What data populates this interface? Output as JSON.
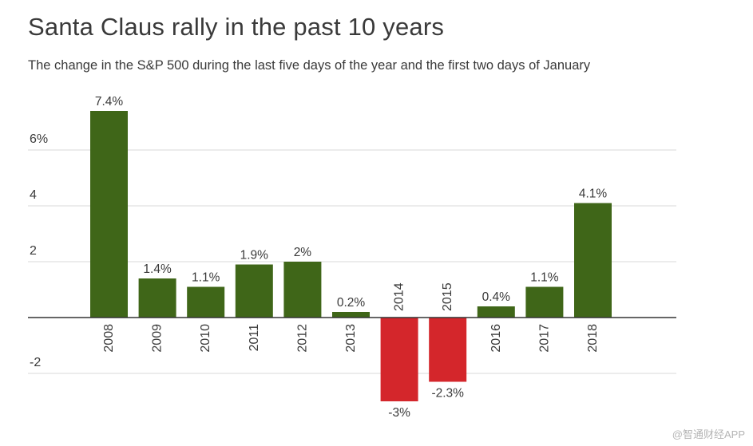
{
  "chart_data": {
    "type": "bar",
    "title": "Santa Claus rally in the past 10 years",
    "subtitle": "The change in the S&P 500 during the last five days of the year and the first two days of January",
    "categories": [
      "2008",
      "2009",
      "2010",
      "2011",
      "2012",
      "2013",
      "2014",
      "2015",
      "2016",
      "2017",
      "2018"
    ],
    "values": [
      7.4,
      1.4,
      1.1,
      1.9,
      2.0,
      0.2,
      -3.0,
      -2.3,
      0.4,
      1.1,
      4.1
    ],
    "data_labels": [
      "7.4%",
      "1.4%",
      "1.1%",
      "1.9%",
      "2%",
      "0.2%",
      "-3%",
      "-2.3%",
      "0.4%",
      "1.1%",
      "4.1%"
    ],
    "ylim": [
      -3,
      8
    ],
    "yticks": [
      {
        "value": 6,
        "label": "6%"
      },
      {
        "value": 4,
        "label": "4"
      },
      {
        "value": 2,
        "label": "2"
      },
      {
        "value": -2,
        "label": "-2"
      }
    ],
    "xlabel": "",
    "ylabel": "",
    "grid": true,
    "colors": {
      "positive": "#3f6618",
      "negative": "#d4262b",
      "grid": "#d9d9d9",
      "axis": "#333333",
      "text": "#3a3a3a"
    }
  },
  "watermark": "@智通财经APP"
}
